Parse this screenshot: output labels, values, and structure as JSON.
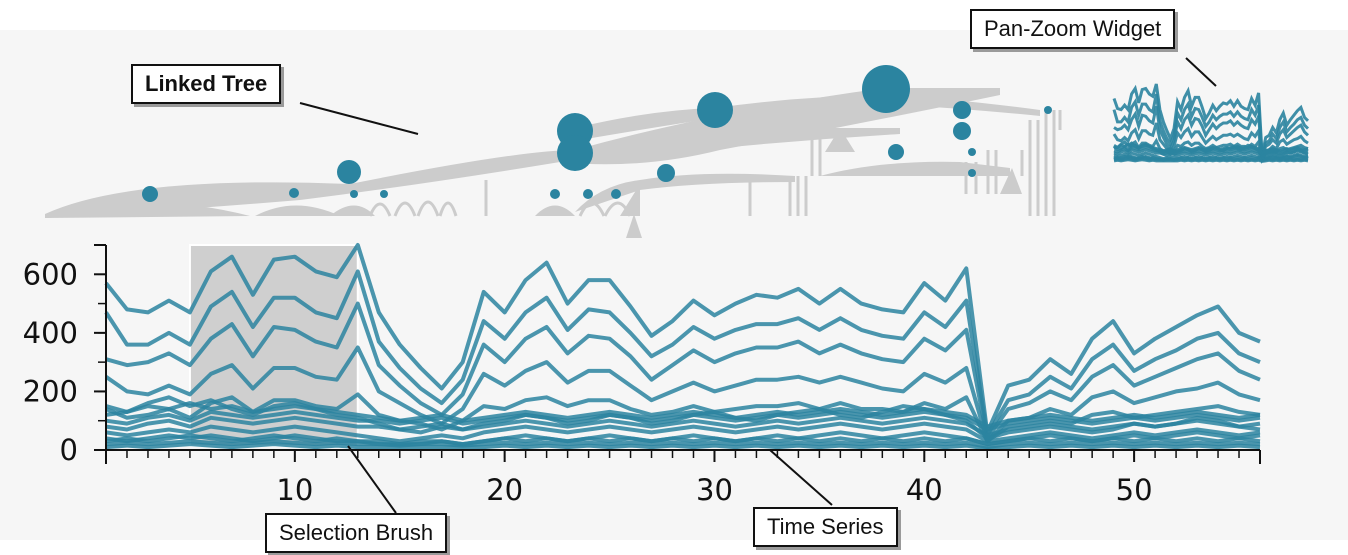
{
  "callouts": {
    "linked_tree": "Linked Tree",
    "pan_zoom_widget": "Pan-Zoom Widget",
    "selection_brush": "Selection Brush",
    "time_series": "Time Series"
  },
  "colors": {
    "series": "#2b84a0",
    "tree": "#cccccc",
    "node": "#2b84a0",
    "brush": "#cfcfcf"
  },
  "chart_data": {
    "type": "line",
    "xlim": [
      1,
      56
    ],
    "ylim": [
      0,
      700
    ],
    "x_ticks": [
      "10",
      "20",
      "30",
      "40",
      "50"
    ],
    "y_ticks": [
      "0",
      "200",
      "400",
      "600"
    ],
    "selection": [
      5,
      13
    ],
    "x": [
      1,
      2,
      3,
      4,
      5,
      6,
      7,
      8,
      9,
      10,
      11,
      12,
      13,
      14,
      15,
      16,
      17,
      18,
      19,
      20,
      21,
      22,
      23,
      24,
      25,
      26,
      27,
      28,
      29,
      30,
      31,
      32,
      33,
      34,
      35,
      36,
      37,
      38,
      39,
      40,
      41,
      42,
      43,
      44,
      45,
      46,
      47,
      48,
      49,
      50,
      51,
      52,
      53,
      54,
      55,
      56
    ],
    "series": [
      {
        "values": [
          570,
          480,
          470,
          510,
          470,
          610,
          660,
          530,
          650,
          660,
          610,
          590,
          710,
          470,
          360,
          280,
          210,
          300,
          540,
          470,
          580,
          640,
          500,
          580,
          580,
          490,
          390,
          440,
          510,
          460,
          500,
          530,
          520,
          550,
          500,
          550,
          500,
          480,
          470,
          570,
          510,
          620,
          60,
          220,
          240,
          310,
          260,
          380,
          440,
          330,
          380,
          420,
          460,
          490,
          400,
          370
        ]
      },
      {
        "values": [
          470,
          360,
          360,
          400,
          360,
          490,
          540,
          420,
          520,
          520,
          470,
          450,
          610,
          370,
          280,
          210,
          160,
          240,
          440,
          380,
          470,
          520,
          410,
          480,
          470,
          400,
          320,
          360,
          420,
          380,
          410,
          430,
          430,
          450,
          410,
          450,
          410,
          390,
          380,
          470,
          420,
          510,
          50,
          170,
          190,
          250,
          210,
          310,
          360,
          270,
          310,
          340,
          380,
          400,
          330,
          300
        ]
      },
      {
        "values": [
          310,
          290,
          300,
          330,
          290,
          380,
          430,
          320,
          420,
          410,
          370,
          350,
          500,
          290,
          220,
          160,
          120,
          190,
          360,
          300,
          380,
          420,
          330,
          390,
          380,
          320,
          240,
          290,
          340,
          300,
          330,
          350,
          350,
          370,
          330,
          360,
          330,
          310,
          300,
          380,
          340,
          410,
          40,
          140,
          160,
          200,
          170,
          250,
          290,
          220,
          250,
          280,
          310,
          330,
          270,
          240
        ]
      },
      {
        "values": [
          250,
          200,
          190,
          220,
          190,
          260,
          290,
          210,
          280,
          280,
          250,
          240,
          350,
          200,
          160,
          120,
          90,
          140,
          260,
          220,
          270,
          300,
          230,
          270,
          270,
          220,
          170,
          200,
          230,
          200,
          220,
          240,
          240,
          250,
          230,
          250,
          230,
          210,
          200,
          260,
          230,
          280,
          30,
          100,
          110,
          140,
          120,
          180,
          200,
          160,
          180,
          200,
          210,
          230,
          190,
          170
        ]
      },
      {
        "values": [
          140,
          110,
          120,
          140,
          110,
          160,
          180,
          130,
          170,
          170,
          150,
          140,
          190,
          120,
          100,
          90,
          70,
          100,
          150,
          140,
          170,
          180,
          150,
          170,
          170,
          140,
          120,
          130,
          150,
          130,
          140,
          150,
          150,
          160,
          140,
          160,
          140,
          140,
          130,
          160,
          140,
          180,
          30,
          80,
          90,
          100,
          90,
          120,
          130,
          110,
          120,
          130,
          140,
          150,
          130,
          120
        ]
      },
      {
        "values": [
          120,
          130,
          150,
          140,
          160,
          140,
          150,
          130,
          140,
          150,
          140,
          130,
          120,
          110,
          100,
          110,
          120,
          100,
          110,
          120,
          130,
          120,
          110,
          120,
          130,
          120,
          110,
          120,
          130,
          120,
          110,
          120,
          130,
          120,
          130,
          140,
          130,
          120,
          130,
          140,
          130,
          120,
          80,
          100,
          110,
          120,
          110,
          100,
          110,
          120,
          110,
          120,
          130,
          120,
          110,
          120
        ]
      },
      {
        "values": [
          100,
          90,
          110,
          120,
          100,
          130,
          120,
          110,
          120,
          130,
          120,
          110,
          100,
          100,
          90,
          100,
          110,
          90,
          100,
          110,
          120,
          110,
          100,
          110,
          120,
          110,
          100,
          110,
          120,
          110,
          100,
          110,
          120,
          110,
          120,
          130,
          120,
          110,
          120,
          130,
          120,
          110,
          70,
          90,
          100,
          110,
          100,
          90,
          100,
          110,
          100,
          110,
          120,
          110,
          100,
          110
        ]
      },
      {
        "values": [
          80,
          70,
          90,
          100,
          80,
          110,
          100,
          90,
          100,
          110,
          100,
          90,
          80,
          80,
          70,
          80,
          90,
          70,
          80,
          90,
          100,
          90,
          80,
          90,
          100,
          90,
          80,
          90,
          100,
          90,
          80,
          90,
          100,
          90,
          100,
          110,
          100,
          90,
          100,
          110,
          100,
          90,
          50,
          70,
          80,
          90,
          80,
          70,
          80,
          90,
          80,
          90,
          100,
          90,
          80,
          90
        ]
      },
      {
        "values": [
          150,
          130,
          160,
          180,
          150,
          170,
          140,
          120,
          150,
          160,
          140,
          120,
          110,
          90,
          70,
          60,
          80,
          70,
          90,
          100,
          120,
          110,
          90,
          100,
          120,
          110,
          90,
          100,
          120,
          130,
          110,
          100,
          120,
          130,
          140,
          120,
          110,
          130,
          150,
          140,
          120,
          100,
          40,
          60,
          70,
          80,
          70,
          60,
          70,
          90,
          80,
          90,
          110,
          100,
          80,
          70
        ]
      },
      {
        "values": [
          60,
          50,
          60,
          70,
          60,
          80,
          70,
          60,
          70,
          80,
          70,
          60,
          50,
          40,
          30,
          40,
          50,
          40,
          60,
          70,
          80,
          70,
          60,
          70,
          80,
          70,
          60,
          70,
          80,
          70,
          60,
          70,
          80,
          70,
          80,
          90,
          80,
          70,
          80,
          90,
          80,
          70,
          30,
          40,
          50,
          60,
          50,
          40,
          50,
          60,
          50,
          60,
          70,
          60,
          50,
          60
        ]
      },
      {
        "values": [
          40,
          30,
          40,
          50,
          40,
          50,
          40,
          30,
          40,
          50,
          40,
          30,
          30,
          20,
          20,
          20,
          30,
          20,
          30,
          40,
          50,
          40,
          30,
          40,
          50,
          40,
          30,
          40,
          50,
          40,
          30,
          40,
          50,
          40,
          50,
          60,
          50,
          40,
          50,
          60,
          50,
          40,
          20,
          30,
          40,
          50,
          40,
          30,
          40,
          50,
          40,
          50,
          60,
          50,
          40,
          50
        ]
      },
      {
        "values": [
          30,
          40,
          30,
          40,
          50,
          40,
          30,
          40,
          50,
          40,
          30,
          40,
          30,
          30,
          20,
          30,
          30,
          20,
          30,
          40,
          30,
          40,
          30,
          40,
          30,
          40,
          30,
          40,
          30,
          40,
          30,
          40,
          30,
          40,
          30,
          40,
          30,
          40,
          30,
          40,
          30,
          40,
          20,
          30,
          40,
          30,
          40,
          30,
          40,
          30,
          40,
          30,
          40,
          30,
          40,
          30
        ]
      },
      {
        "values": [
          20,
          25,
          20,
          25,
          30,
          25,
          20,
          25,
          30,
          25,
          20,
          25,
          20,
          20,
          15,
          20,
          20,
          15,
          20,
          25,
          20,
          25,
          20,
          25,
          20,
          25,
          20,
          25,
          20,
          25,
          20,
          25,
          20,
          25,
          20,
          25,
          20,
          25,
          20,
          25,
          20,
          25,
          10,
          20,
          25,
          20,
          25,
          20,
          25,
          20,
          25,
          20,
          25,
          20,
          25,
          20
        ]
      },
      {
        "values": [
          10,
          15,
          10,
          15,
          20,
          15,
          10,
          15,
          20,
          15,
          10,
          15,
          10,
          10,
          10,
          10,
          10,
          10,
          10,
          15,
          10,
          15,
          10,
          15,
          10,
          15,
          10,
          15,
          10,
          15,
          10,
          15,
          10,
          15,
          10,
          15,
          10,
          15,
          10,
          15,
          10,
          15,
          5,
          10,
          15,
          10,
          15,
          10,
          15,
          10,
          15,
          10,
          15,
          10,
          15,
          10
        ]
      }
    ]
  }
}
